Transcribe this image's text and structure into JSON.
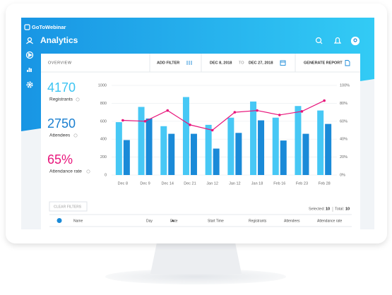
{
  "header": {
    "logo": "GoToWebinar",
    "title": "Analytics"
  },
  "toolbar": {
    "overview": "OVERVIEW",
    "add_filter": "ADD FILTER",
    "date_from": "DEC 8, 2018",
    "to": "TO",
    "date_to": "DEC 27, 2018",
    "generate_report": "GENERATE REPORT"
  },
  "stats": [
    "4170",
    "2750",
    "65%"
  ],
  "chart_data": {
    "type": "bar",
    "categories": [
      "Dec 8",
      "Dec 9",
      "Dec 14",
      "Dec 21",
      "Jan 12",
      "Jan 12",
      "Jan 18",
      "Feb 16",
      "Feb 23",
      "Feb 28"
    ],
    "series": [
      {
        "name": "Registrants",
        "color": "#47c8f5",
        "values": [
          590,
          760,
          545,
          870,
          560,
          640,
          820,
          640,
          770,
          720
        ]
      },
      {
        "name": "Attendees",
        "color": "#1a8ad8",
        "values": [
          390,
          630,
          460,
          460,
          295,
          470,
          610,
          385,
          460,
          570
        ]
      },
      {
        "name": "Attendance rate",
        "color": "#e8157b",
        "type": "line",
        "axis": "y2",
        "values": [
          61,
          60,
          72,
          56,
          50,
          70,
          72,
          67,
          71,
          83
        ]
      }
    ],
    "ylim": [
      0,
      1000
    ],
    "yticks": [
      0,
      200,
      400,
      600,
      800,
      1000
    ],
    "y2lim": [
      0,
      100
    ],
    "y2ticks": [
      {
        "value": 0,
        "label": "0%"
      },
      {
        "value": 20,
        "label": "20%"
      },
      {
        "value": 40,
        "label": "40%"
      },
      {
        "value": 60,
        "label": "60%"
      },
      {
        "value": 80,
        "label": "80%"
      },
      {
        "value": 100,
        "label": "100%"
      }
    ],
    "grid": true
  },
  "table": {
    "clear_filters": "CLEAR FILTERS",
    "selected_label": "Selected:",
    "selected": 10,
    "total_label": "Total:",
    "total": 10,
    "columns": [
      "Name",
      "Day",
      "Date",
      "Start Time",
      "Registrants",
      "Attendees",
      "Attendance rate"
    ]
  }
}
